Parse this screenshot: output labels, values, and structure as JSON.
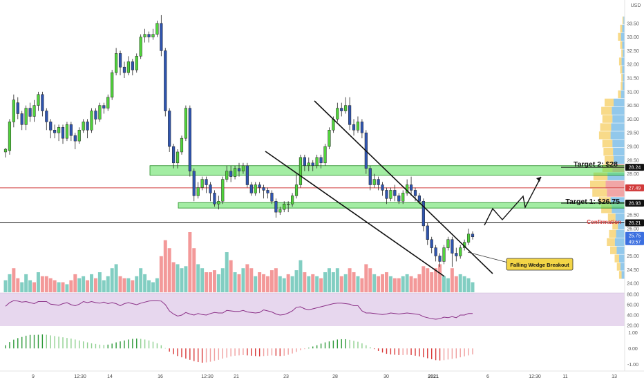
{
  "currency": "USD",
  "annotations": {
    "target2": "Target 2: $28",
    "target1": "Target 1: $26.75",
    "confirmation": "Confirmation",
    "callout": "Falling Wedge Breakout"
  },
  "price_badges": [
    "28.24",
    "27.49",
    "26.93",
    "26.21",
    "25.75",
    "49:57"
  ],
  "colors": {
    "bull": "#51d33c",
    "bear": "#2f55b0",
    "zone": "#57df57",
    "red_line": "#d13a3a",
    "rsi_bg": "#e7d7ee",
    "rsi_line": "#8a2f86",
    "vol_up": "#5fc0b1",
    "vol_down": "#ef7c7c",
    "callout_fill": "#f3d547"
  },
  "chart_data": {
    "type": "candlestick",
    "x_tick_labels": [
      "9",
      "12:30",
      "14",
      "16",
      "12:30",
      "21",
      "23",
      "28",
      "30",
      "2021",
      "6",
      "12:30",
      "11",
      "13"
    ],
    "price_axis": {
      "ylim": [
        23.8,
        34.0
      ],
      "ticks": [
        "33.50",
        "33.00",
        "32.50",
        "32.00",
        "31.50",
        "31.00",
        "30.50",
        "30.00",
        "29.50",
        "29.00",
        "28.50",
        "28.00",
        "26.50",
        "26.00",
        "25.00",
        "24.50",
        "24.00"
      ]
    },
    "levels": {
      "target2": 28.24,
      "red": 27.49,
      "target1": 26.93,
      "confirmation": 26.21,
      "last_price": 25.75
    },
    "zones": [
      {
        "low": 27.95,
        "high": 28.3
      },
      {
        "low": 26.75,
        "high": 26.95
      }
    ],
    "candles": [
      [
        28.8,
        28.9,
        28.6,
        28.95
      ],
      [
        28.85,
        29.9,
        28.7,
        30.0
      ],
      [
        29.9,
        30.7,
        29.7,
        30.9
      ],
      [
        30.6,
        30.2,
        30.0,
        30.8
      ],
      [
        30.2,
        29.8,
        29.6,
        30.3
      ],
      [
        29.8,
        30.4,
        29.6,
        30.5
      ],
      [
        30.4,
        30.1,
        29.9,
        30.6
      ],
      [
        30.1,
        30.5,
        29.9,
        30.7
      ],
      [
        30.5,
        30.9,
        30.3,
        31.0
      ],
      [
        30.9,
        30.3,
        30.1,
        31.0
      ],
      [
        30.3,
        29.9,
        29.6,
        30.4
      ],
      [
        29.9,
        29.6,
        29.3,
        30.0
      ],
      [
        29.6,
        29.5,
        29.3,
        29.8
      ],
      [
        29.5,
        29.7,
        29.2,
        29.8
      ],
      [
        29.7,
        29.3,
        29.1,
        29.8
      ],
      [
        29.3,
        29.8,
        29.2,
        29.9
      ],
      [
        29.8,
        29.4,
        29.2,
        29.9
      ],
      [
        29.4,
        29.2,
        28.9,
        29.5
      ],
      [
        29.2,
        29.6,
        29.1,
        29.7
      ],
      [
        29.6,
        29.9,
        29.5,
        30.0
      ],
      [
        29.9,
        29.6,
        29.3,
        30.0
      ],
      [
        29.6,
        30.3,
        29.5,
        30.4
      ],
      [
        30.3,
        30.0,
        29.8,
        30.4
      ],
      [
        30.0,
        30.5,
        29.9,
        30.6
      ],
      [
        30.5,
        30.4,
        30.2,
        30.6
      ],
      [
        30.4,
        30.8,
        30.3,
        30.9
      ],
      [
        30.8,
        31.7,
        30.7,
        31.8
      ],
      [
        31.7,
        32.4,
        31.6,
        32.6
      ],
      [
        32.4,
        31.9,
        31.6,
        32.5
      ],
      [
        31.9,
        31.7,
        31.5,
        32.1
      ],
      [
        31.7,
        32.1,
        31.6,
        32.3
      ],
      [
        32.1,
        31.8,
        31.6,
        32.2
      ],
      [
        31.8,
        32.3,
        31.7,
        32.4
      ],
      [
        32.3,
        33.0,
        32.2,
        33.1
      ],
      [
        33.0,
        33.1,
        32.8,
        33.3
      ],
      [
        33.1,
        33.0,
        32.8,
        33.2
      ],
      [
        33.0,
        33.1,
        32.9,
        33.3
      ],
      [
        33.1,
        33.5,
        33.0,
        33.6
      ],
      [
        33.5,
        32.5,
        32.3,
        33.8
      ],
      [
        32.5,
        30.3,
        30.1,
        32.6
      ],
      [
        30.3,
        29.0,
        28.8,
        30.4
      ],
      [
        29.0,
        28.4,
        28.2,
        29.1
      ],
      [
        28.4,
        28.8,
        28.2,
        28.9
      ],
      [
        28.8,
        29.3,
        28.7,
        29.4
      ],
      [
        29.3,
        30.4,
        29.2,
        30.5
      ],
      [
        30.4,
        28.1,
        27.9,
        30.5
      ],
      [
        28.1,
        27.2,
        27.0,
        28.2
      ],
      [
        27.2,
        27.5,
        27.1,
        27.7
      ],
      [
        27.5,
        27.8,
        27.4,
        27.9
      ],
      [
        27.8,
        27.6,
        27.3,
        27.9
      ],
      [
        27.6,
        27.3,
        27.0,
        27.7
      ],
      [
        27.3,
        26.9,
        26.8,
        27.4
      ],
      [
        26.9,
        27.0,
        26.7,
        27.2
      ],
      [
        27.0,
        27.8,
        26.9,
        27.9
      ],
      [
        27.8,
        28.1,
        27.7,
        28.3
      ],
      [
        28.1,
        27.9,
        27.7,
        28.3
      ],
      [
        27.9,
        28.2,
        27.8,
        28.3
      ],
      [
        28.2,
        28.1,
        27.9,
        28.4
      ],
      [
        28.1,
        28.3,
        28.0,
        28.4
      ],
      [
        28.3,
        27.6,
        27.5,
        28.4
      ],
      [
        27.6,
        27.3,
        27.2,
        27.7
      ],
      [
        27.3,
        27.6,
        27.2,
        27.7
      ],
      [
        27.6,
        27.5,
        27.3,
        27.7
      ],
      [
        27.5,
        27.4,
        27.1,
        27.6
      ],
      [
        27.4,
        27.3,
        27.1,
        27.5
      ],
      [
        27.3,
        27.0,
        26.9,
        27.4
      ],
      [
        27.0,
        26.6,
        26.4,
        27.1
      ],
      [
        26.6,
        26.7,
        26.5,
        26.8
      ],
      [
        26.7,
        26.9,
        26.6,
        27.0
      ],
      [
        26.9,
        26.9,
        26.6,
        27.0
      ],
      [
        26.9,
        27.2,
        26.8,
        27.3
      ],
      [
        27.2,
        27.6,
        27.1,
        28.0
      ],
      [
        27.6,
        28.6,
        27.5,
        28.7
      ],
      [
        28.6,
        28.3,
        28.1,
        28.7
      ],
      [
        28.3,
        28.4,
        28.1,
        28.6
      ],
      [
        28.4,
        28.3,
        28.1,
        28.5
      ],
      [
        28.3,
        28.6,
        28.2,
        28.7
      ],
      [
        28.6,
        28.4,
        28.2,
        28.7
      ],
      [
        28.4,
        29.0,
        28.3,
        29.1
      ],
      [
        29.0,
        29.6,
        28.9,
        29.7
      ],
      [
        29.6,
        30.0,
        29.5,
        30.1
      ],
      [
        30.0,
        30.4,
        29.9,
        30.6
      ],
      [
        30.4,
        30.3,
        30.1,
        30.6
      ],
      [
        30.3,
        30.5,
        30.2,
        30.8
      ],
      [
        30.5,
        29.8,
        29.6,
        30.8
      ],
      [
        29.8,
        29.6,
        29.4,
        30.0
      ],
      [
        29.6,
        29.9,
        29.5,
        30.1
      ],
      [
        29.9,
        29.5,
        29.3,
        30.0
      ],
      [
        29.5,
        28.2,
        28.0,
        29.6
      ],
      [
        28.2,
        27.6,
        27.4,
        28.3
      ],
      [
        27.6,
        27.8,
        27.5,
        28.0
      ],
      [
        27.8,
        27.6,
        27.4,
        27.9
      ],
      [
        27.6,
        27.4,
        27.2,
        27.7
      ],
      [
        27.4,
        27.1,
        26.9,
        27.5
      ],
      [
        27.1,
        27.4,
        27.0,
        27.5
      ],
      [
        27.4,
        27.2,
        27.0,
        27.6
      ],
      [
        27.2,
        27.0,
        26.9,
        27.3
      ],
      [
        27.0,
        27.3,
        26.9,
        27.4
      ],
      [
        27.3,
        27.6,
        27.2,
        27.8
      ],
      [
        27.6,
        27.4,
        27.2,
        27.9
      ],
      [
        27.4,
        27.2,
        27.0,
        27.5
      ],
      [
        27.2,
        27.0,
        26.9,
        27.3
      ],
      [
        27.0,
        26.1,
        25.9,
        27.1
      ],
      [
        26.1,
        25.6,
        25.4,
        26.2
      ],
      [
        25.6,
        25.3,
        25.1,
        25.7
      ],
      [
        25.3,
        25.0,
        24.8,
        25.4
      ],
      [
        25.0,
        24.8,
        24.6,
        25.1
      ],
      [
        24.8,
        25.3,
        24.7,
        25.4
      ],
      [
        25.3,
        25.6,
        25.2,
        25.7
      ],
      [
        25.6,
        25.1,
        24.6,
        25.7
      ],
      [
        25.1,
        25.0,
        24.8,
        25.3
      ],
      [
        25.0,
        25.3,
        24.9,
        25.4
      ],
      [
        25.3,
        25.5,
        25.2,
        25.6
      ],
      [
        25.5,
        25.8,
        25.4,
        26.0
      ],
      [
        25.8,
        25.7,
        25.6,
        25.9
      ]
    ],
    "volume": [
      [
        6,
        1
      ],
      [
        9,
        1
      ],
      [
        12,
        0
      ],
      [
        7,
        0
      ],
      [
        5,
        1
      ],
      [
        9,
        1
      ],
      [
        6,
        1
      ],
      [
        5,
        0
      ],
      [
        10,
        1
      ],
      [
        8,
        0
      ],
      [
        8,
        0
      ],
      [
        7,
        0
      ],
      [
        6,
        0
      ],
      [
        5,
        1
      ],
      [
        5,
        0
      ],
      [
        4,
        1
      ],
      [
        6,
        0
      ],
      [
        9,
        0
      ],
      [
        7,
        1
      ],
      [
        8,
        1
      ],
      [
        6,
        0
      ],
      [
        9,
        1
      ],
      [
        7,
        0
      ],
      [
        10,
        1
      ],
      [
        6,
        1
      ],
      [
        8,
        1
      ],
      [
        12,
        1
      ],
      [
        14,
        1
      ],
      [
        8,
        0
      ],
      [
        7,
        0
      ],
      [
        7,
        1
      ],
      [
        6,
        0
      ],
      [
        8,
        1
      ],
      [
        12,
        1
      ],
      [
        9,
        1
      ],
      [
        6,
        1
      ],
      [
        5,
        1
      ],
      [
        7,
        1
      ],
      [
        18,
        0
      ],
      [
        26,
        0
      ],
      [
        22,
        0
      ],
      [
        15,
        0
      ],
      [
        14,
        1
      ],
      [
        12,
        1
      ],
      [
        13,
        1
      ],
      [
        30,
        0
      ],
      [
        22,
        0
      ],
      [
        14,
        1
      ],
      [
        12,
        1
      ],
      [
        10,
        0
      ],
      [
        10,
        0
      ],
      [
        11,
        0
      ],
      [
        9,
        1
      ],
      [
        12,
        1
      ],
      [
        20,
        1
      ],
      [
        16,
        0
      ],
      [
        10,
        1
      ],
      [
        9,
        0
      ],
      [
        12,
        1
      ],
      [
        14,
        0
      ],
      [
        12,
        0
      ],
      [
        8,
        1
      ],
      [
        10,
        0
      ],
      [
        9,
        0
      ],
      [
        8,
        0
      ],
      [
        11,
        0
      ],
      [
        12,
        0
      ],
      [
        8,
        1
      ],
      [
        7,
        1
      ],
      [
        9,
        0
      ],
      [
        8,
        1
      ],
      [
        11,
        1
      ],
      [
        16,
        1
      ],
      [
        10,
        0
      ],
      [
        8,
        1
      ],
      [
        9,
        0
      ],
      [
        8,
        1
      ],
      [
        7,
        0
      ],
      [
        10,
        1
      ],
      [
        12,
        1
      ],
      [
        10,
        1
      ],
      [
        12,
        1
      ],
      [
        8,
        0
      ],
      [
        9,
        1
      ],
      [
        12,
        0
      ],
      [
        10,
        0
      ],
      [
        8,
        1
      ],
      [
        7,
        0
      ],
      [
        14,
        0
      ],
      [
        12,
        0
      ],
      [
        9,
        1
      ],
      [
        8,
        0
      ],
      [
        9,
        0
      ],
      [
        10,
        0
      ],
      [
        8,
        1
      ],
      [
        7,
        0
      ],
      [
        7,
        0
      ],
      [
        8,
        1
      ],
      [
        9,
        1
      ],
      [
        8,
        0
      ],
      [
        7,
        0
      ],
      [
        9,
        0
      ],
      [
        13,
        0
      ],
      [
        12,
        0
      ],
      [
        10,
        0
      ],
      [
        12,
        0
      ],
      [
        14,
        0
      ],
      [
        8,
        1
      ],
      [
        7,
        1
      ],
      [
        12,
        0
      ],
      [
        8,
        0
      ],
      [
        9,
        1
      ],
      [
        8,
        1
      ],
      [
        7,
        1
      ],
      [
        5,
        1
      ]
    ],
    "rsi": {
      "ylim": [
        20,
        80
      ],
      "ticks": [
        "80.00",
        "60.00",
        "40.00",
        "20.00"
      ],
      "values": [
        57,
        64,
        68,
        67,
        65,
        66,
        64,
        62,
        66,
        66,
        66,
        61,
        60,
        59,
        62,
        64,
        60,
        58,
        61,
        66,
        64,
        66,
        64,
        63,
        65,
        62,
        64,
        62,
        58,
        62,
        64,
        62,
        60,
        63,
        65,
        67,
        68,
        68,
        67,
        60,
        48,
        42,
        38,
        40,
        45,
        42,
        40,
        43,
        41,
        40,
        43,
        45,
        44,
        44,
        49,
        48,
        47,
        47,
        49,
        46,
        45,
        44,
        45,
        50,
        48,
        46,
        42,
        40,
        41,
        44,
        48,
        55,
        56,
        52,
        50,
        52,
        54,
        56,
        58,
        60,
        62,
        63,
        63,
        62,
        61,
        58,
        58,
        48,
        44,
        44,
        43,
        42,
        41,
        42,
        44,
        43,
        42,
        43,
        44,
        43,
        42,
        41,
        37,
        35,
        33,
        32,
        33,
        36,
        35,
        37,
        35,
        40,
        40,
        43,
        43
      ]
    },
    "macd": {
      "ylim": [
        -1.25,
        1.1
      ],
      "ticks": [
        "1.00",
        "0.00",
        "-1.00"
      ],
      "values": [
        0.2,
        0.4,
        0.55,
        0.65,
        0.72,
        0.8,
        0.85,
        0.85,
        0.86,
        0.88,
        0.86,
        0.82,
        0.78,
        0.74,
        0.7,
        0.66,
        0.62,
        0.56,
        0.5,
        0.44,
        0.38,
        0.32,
        0.28,
        0.24,
        0.22,
        0.24,
        0.3,
        0.38,
        0.44,
        0.5,
        0.56,
        0.6,
        0.62,
        0.6,
        0.56,
        0.5,
        0.42,
        0.32,
        0.2,
        0.02,
        -0.2,
        -0.36,
        -0.48,
        -0.56,
        -0.64,
        -0.72,
        -0.8,
        -0.86,
        -0.9,
        -0.88,
        -0.84,
        -0.78,
        -0.72,
        -0.64,
        -0.58,
        -0.5,
        -0.46,
        -0.44,
        -0.42,
        -0.44,
        -0.46,
        -0.48,
        -0.5,
        -0.48,
        -0.46,
        -0.44,
        -0.46,
        -0.48,
        -0.46,
        -0.4,
        -0.32,
        -0.22,
        -0.12,
        -0.04,
        0.04,
        0.12,
        0.2,
        0.3,
        0.38,
        0.44,
        0.5,
        0.56,
        0.58,
        0.58,
        0.54,
        0.48,
        0.42,
        0.32,
        0.2,
        0.08,
        -0.04,
        -0.16,
        -0.26,
        -0.34,
        -0.38,
        -0.4,
        -0.42,
        -0.42,
        -0.4,
        -0.42,
        -0.46,
        -0.5,
        -0.56,
        -0.62,
        -0.68,
        -0.74,
        -0.76,
        -0.74,
        -0.7,
        -0.66,
        -0.62,
        -0.56,
        -0.5,
        -0.44,
        -0.38
      ]
    },
    "volume_profile": [
      {
        "price": 33.6,
        "v": 4
      },
      {
        "price": 33.3,
        "v": 8
      },
      {
        "price": 33.0,
        "v": 12
      },
      {
        "price": 32.7,
        "v": 8
      },
      {
        "price": 32.4,
        "v": 6
      },
      {
        "price": 32.1,
        "v": 10
      },
      {
        "price": 31.8,
        "v": 8
      },
      {
        "price": 31.5,
        "v": 6
      },
      {
        "price": 31.2,
        "v": 7
      },
      {
        "price": 30.9,
        "v": 12
      },
      {
        "price": 30.6,
        "v": 36
      },
      {
        "price": 30.3,
        "v": 42
      },
      {
        "price": 30.0,
        "v": 40
      },
      {
        "price": 29.7,
        "v": 44
      },
      {
        "price": 29.4,
        "v": 46
      },
      {
        "price": 29.1,
        "v": 40
      },
      {
        "price": 28.8,
        "v": 38
      },
      {
        "price": 28.5,
        "v": 36
      },
      {
        "price": 28.2,
        "v": 40
      },
      {
        "price": 27.9,
        "v": 56
      },
      {
        "price": 27.6,
        "v": 62
      },
      {
        "price": 27.3,
        "v": 58
      },
      {
        "price": 27.0,
        "v": 46
      },
      {
        "price": 26.7,
        "v": 42
      },
      {
        "price": 26.4,
        "v": 30
      },
      {
        "price": 26.1,
        "v": 22
      },
      {
        "price": 25.8,
        "v": 28
      },
      {
        "price": 25.5,
        "v": 32
      },
      {
        "price": 25.2,
        "v": 26
      },
      {
        "price": 24.9,
        "v": 18
      },
      {
        "price": 24.6,
        "v": 14
      },
      {
        "price": 24.3,
        "v": 10
      }
    ]
  }
}
